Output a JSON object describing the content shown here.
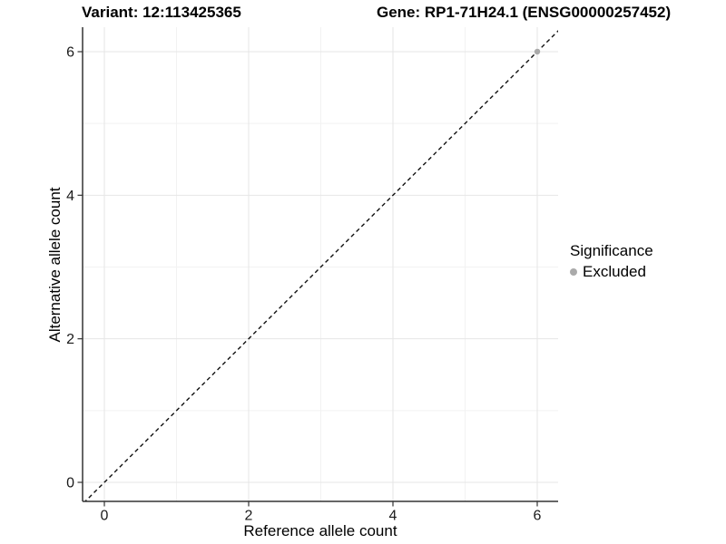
{
  "header": {
    "variant_title": "Variant: 12:113425365",
    "gene_title": "Gene: RP1-71H24.1 (ENSG00000257452)"
  },
  "chart_data": {
    "type": "scatter",
    "xlabel": "Reference allele count",
    "ylabel": "Alternative allele count",
    "x_ticks": [
      0,
      2,
      4,
      6
    ],
    "y_ticks": [
      0,
      2,
      4,
      6
    ],
    "x_minor_ticks": [
      1,
      3,
      5
    ],
    "y_minor_ticks": [
      1,
      3,
      5
    ],
    "xlim": [
      -0.3,
      6.3
    ],
    "ylim": [
      -0.3,
      6.35
    ],
    "grid": "major and minor, light gray on white",
    "points": [
      {
        "x": 6,
        "y": 6,
        "series": "Excluded",
        "color": "#aaaaaa"
      }
    ],
    "reference_line": {
      "kind": "identity",
      "slope": 1,
      "intercept": 0,
      "style": "dashed",
      "color": "#111111"
    },
    "legend": {
      "title": "Significance",
      "position": "right",
      "items": [
        {
          "label": "Excluded",
          "color": "#aaaaaa",
          "marker": "circle"
        }
      ]
    },
    "colors": {
      "background": "#ffffff",
      "axis_line": "#333333",
      "tick_mark": "#333333",
      "grid_major": "#e6e6e6",
      "grid_minor": "#f2f2f2",
      "tick_text": "#1a1a1a"
    }
  }
}
